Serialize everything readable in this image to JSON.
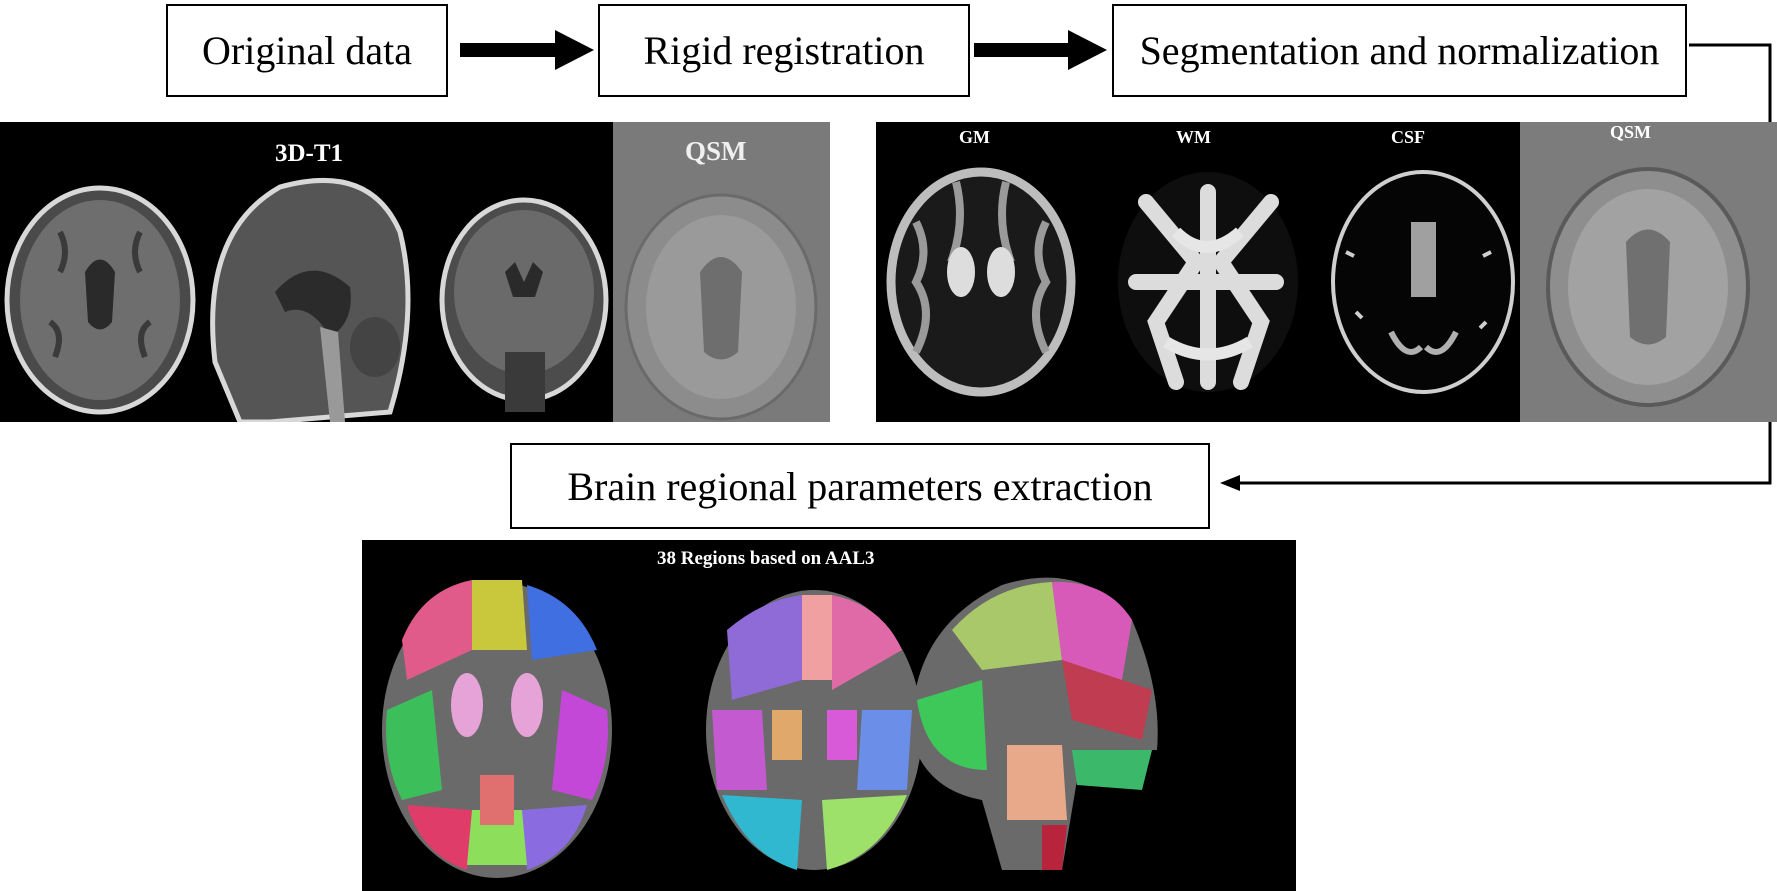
{
  "steps": {
    "original": "Original data",
    "rigid": "Rigid registration",
    "segmentation": "Segmentation and normalization",
    "extraction": "Brain regional parameters extraction"
  },
  "panel1": {
    "t1_label": "3D-T1",
    "qsm_label": "QSM"
  },
  "panel2": {
    "gm_label": "GM",
    "wm_label": "WM",
    "csf_label": "CSF",
    "qsm_label": "QSM"
  },
  "panel3": {
    "title": "38 Regions based on AAL3"
  }
}
